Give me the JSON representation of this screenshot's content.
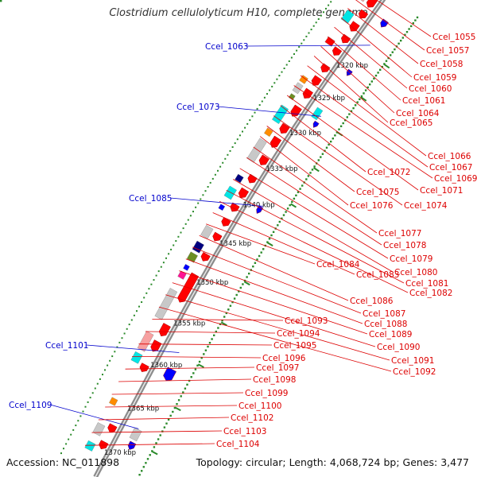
{
  "title": "Clostridium cellulolyticum H10, complete genome",
  "accession": "Accession: NC_011898",
  "summary": "Topology: circular; Length: 4,068,724 bp; Genes: 3,477",
  "scale_ticks": [
    "1320 kbp",
    "1325 kbp",
    "1330 kbp",
    "1335 kbp",
    "1340 kbp",
    "1345 kbp",
    "1350 kbp",
    "1355 kbp",
    "1360 kbp",
    "1365 kbp",
    "1370 kbp"
  ],
  "outer_genes": [
    "Ccel_1063",
    "Ccel_1073",
    "Ccel_1085",
    "Ccel_1101",
    "Ccel_1109"
  ],
  "inner_genes": [
    "Ccel_1055",
    "Ccel_1057",
    "Ccel_1058",
    "Ccel_1059",
    "Ccel_1060",
    "Ccel_1061",
    "Ccel_1064",
    "Ccel_1065",
    "Ccel_1066",
    "Ccel_1067",
    "Ccel_1069",
    "Ccel_1071",
    "Ccel_1072",
    "Ccel_1074",
    "Ccel_1075",
    "Ccel_1076",
    "Ccel_1077",
    "Ccel_1078",
    "Ccel_1079",
    "Ccel_1080",
    "Ccel_1081",
    "Ccel_1082",
    "Ccel_1083",
    "Ccel_1084",
    "Ccel_1086",
    "Ccel_1087",
    "Ccel_1088",
    "Ccel_1089",
    "Ccel_1090",
    "Ccel_1091",
    "Ccel_1092",
    "Ccel_1093",
    "Ccel_1094",
    "Ccel_1095",
    "Ccel_1096",
    "Ccel_1097",
    "Ccel_1098",
    "Ccel_1099",
    "Ccel_1100",
    "Ccel_1102",
    "Ccel_1103",
    "Ccel_1104"
  ],
  "colors": {
    "backbone": "#8c8c8c",
    "gene_forward": "#ff0000",
    "gene_light": "#f7a0a0",
    "gray_feature": "#c8c8c8",
    "cyan_feature": "#00e5e5",
    "blue_feature": "#0000ff",
    "orange_feature": "#ff8c00",
    "green_feature": "#6b8e23",
    "navy_feature": "#000080",
    "magenta_feature": "#ff1493",
    "tick_dots": "#2a8a2a",
    "outer_label": "#0000cc",
    "inner_label": "#dd0000"
  }
}
